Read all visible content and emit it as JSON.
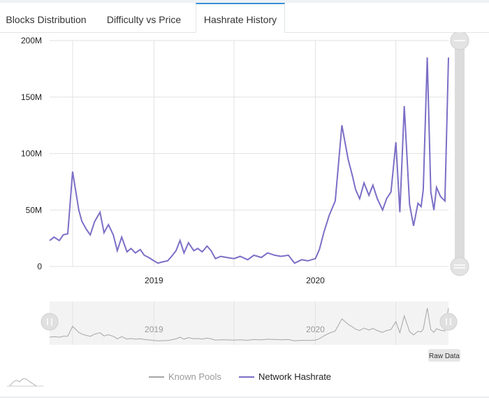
{
  "tabs": [
    {
      "label": "Blocks Distribution",
      "active": false
    },
    {
      "label": "Difficulty vs Price",
      "active": false
    },
    {
      "label": "Hashrate History",
      "active": true
    }
  ],
  "raw_data_label": "Raw Data",
  "colors": {
    "series": "#7b6fc6",
    "known_pools": "#a6a6a6",
    "grid": "#e2e2e2",
    "navigator_bg": "#f2f2f2"
  },
  "chart_data": {
    "type": "line",
    "title": "",
    "xlabel": "",
    "ylabel": "",
    "ylim": [
      0,
      200000000
    ],
    "y_ticks": [
      "0",
      "50M",
      "100M",
      "150M",
      "200M"
    ],
    "x_ticks": [
      "2019",
      "2020"
    ],
    "grid": true,
    "legend": "bottom-center",
    "series": [
      {
        "name": "Network Hashrate",
        "color": "#7b6fc6",
        "x": [
          "2018-05-10",
          "2018-05-20",
          "2018-06-01",
          "2018-06-10",
          "2018-06-20",
          "2018-07-01",
          "2018-07-15",
          "2018-07-22",
          "2018-08-01",
          "2018-08-10",
          "2018-08-20",
          "2018-09-01",
          "2018-09-10",
          "2018-09-20",
          "2018-10-01",
          "2018-10-10",
          "2018-10-20",
          "2018-11-01",
          "2018-11-10",
          "2018-11-20",
          "2018-12-01",
          "2018-12-10",
          "2018-12-20",
          "2019-01-01",
          "2019-01-10",
          "2019-01-20",
          "2019-02-01",
          "2019-02-10",
          "2019-02-20",
          "2019-03-01",
          "2019-03-10",
          "2019-03-20",
          "2019-04-01",
          "2019-04-10",
          "2019-04-20",
          "2019-05-01",
          "2019-05-10",
          "2019-05-20",
          "2019-06-01",
          "2019-06-15",
          "2019-07-01",
          "2019-07-15",
          "2019-08-01",
          "2019-08-15",
          "2019-09-01",
          "2019-09-15",
          "2019-10-01",
          "2019-10-15",
          "2019-11-01",
          "2019-11-15",
          "2019-12-01",
          "2019-12-15",
          "2020-01-01",
          "2020-01-10",
          "2020-01-20",
          "2020-02-01",
          "2020-02-15",
          "2020-03-01",
          "2020-03-15",
          "2020-03-25",
          "2020-04-01",
          "2020-04-10",
          "2020-04-20",
          "2020-05-01",
          "2020-05-10",
          "2020-05-20",
          "2020-06-01",
          "2020-06-10",
          "2020-06-20",
          "2020-07-01",
          "2020-07-10",
          "2020-07-20",
          "2020-08-01",
          "2020-08-10",
          "2020-08-20",
          "2020-08-27",
          "2020-09-01",
          "2020-09-10",
          "2020-09-18",
          "2020-09-25",
          "2020-10-01",
          "2020-10-10",
          "2020-10-20",
          "2020-10-28"
        ],
        "values": [
          23000000,
          26000000,
          23000000,
          28000000,
          29000000,
          84000000,
          50000000,
          40000000,
          33000000,
          28000000,
          40000000,
          48000000,
          30000000,
          37000000,
          28000000,
          14000000,
          26000000,
          13000000,
          16000000,
          12000000,
          15000000,
          10000000,
          8000000,
          5000000,
          3000000,
          4000000,
          5000000,
          9000000,
          14000000,
          23000000,
          12000000,
          21000000,
          14000000,
          16000000,
          13000000,
          18000000,
          14000000,
          7000000,
          9000000,
          8000000,
          7000000,
          9000000,
          6000000,
          10000000,
          8000000,
          12000000,
          10000000,
          9000000,
          10000000,
          3000000,
          6000000,
          5000000,
          7000000,
          15000000,
          30000000,
          45000000,
          58000000,
          125000000,
          95000000,
          80000000,
          68000000,
          60000000,
          74000000,
          63000000,
          72000000,
          60000000,
          50000000,
          60000000,
          66000000,
          110000000,
          48000000,
          142000000,
          55000000,
          36000000,
          56000000,
          53000000,
          68000000,
          185000000,
          66000000,
          50000000,
          70000000,
          62000000,
          58000000,
          185000000
        ]
      },
      {
        "name": "Known Pools",
        "color": "#a6a6a6",
        "hidden": true,
        "x": [],
        "values": []
      }
    ]
  }
}
